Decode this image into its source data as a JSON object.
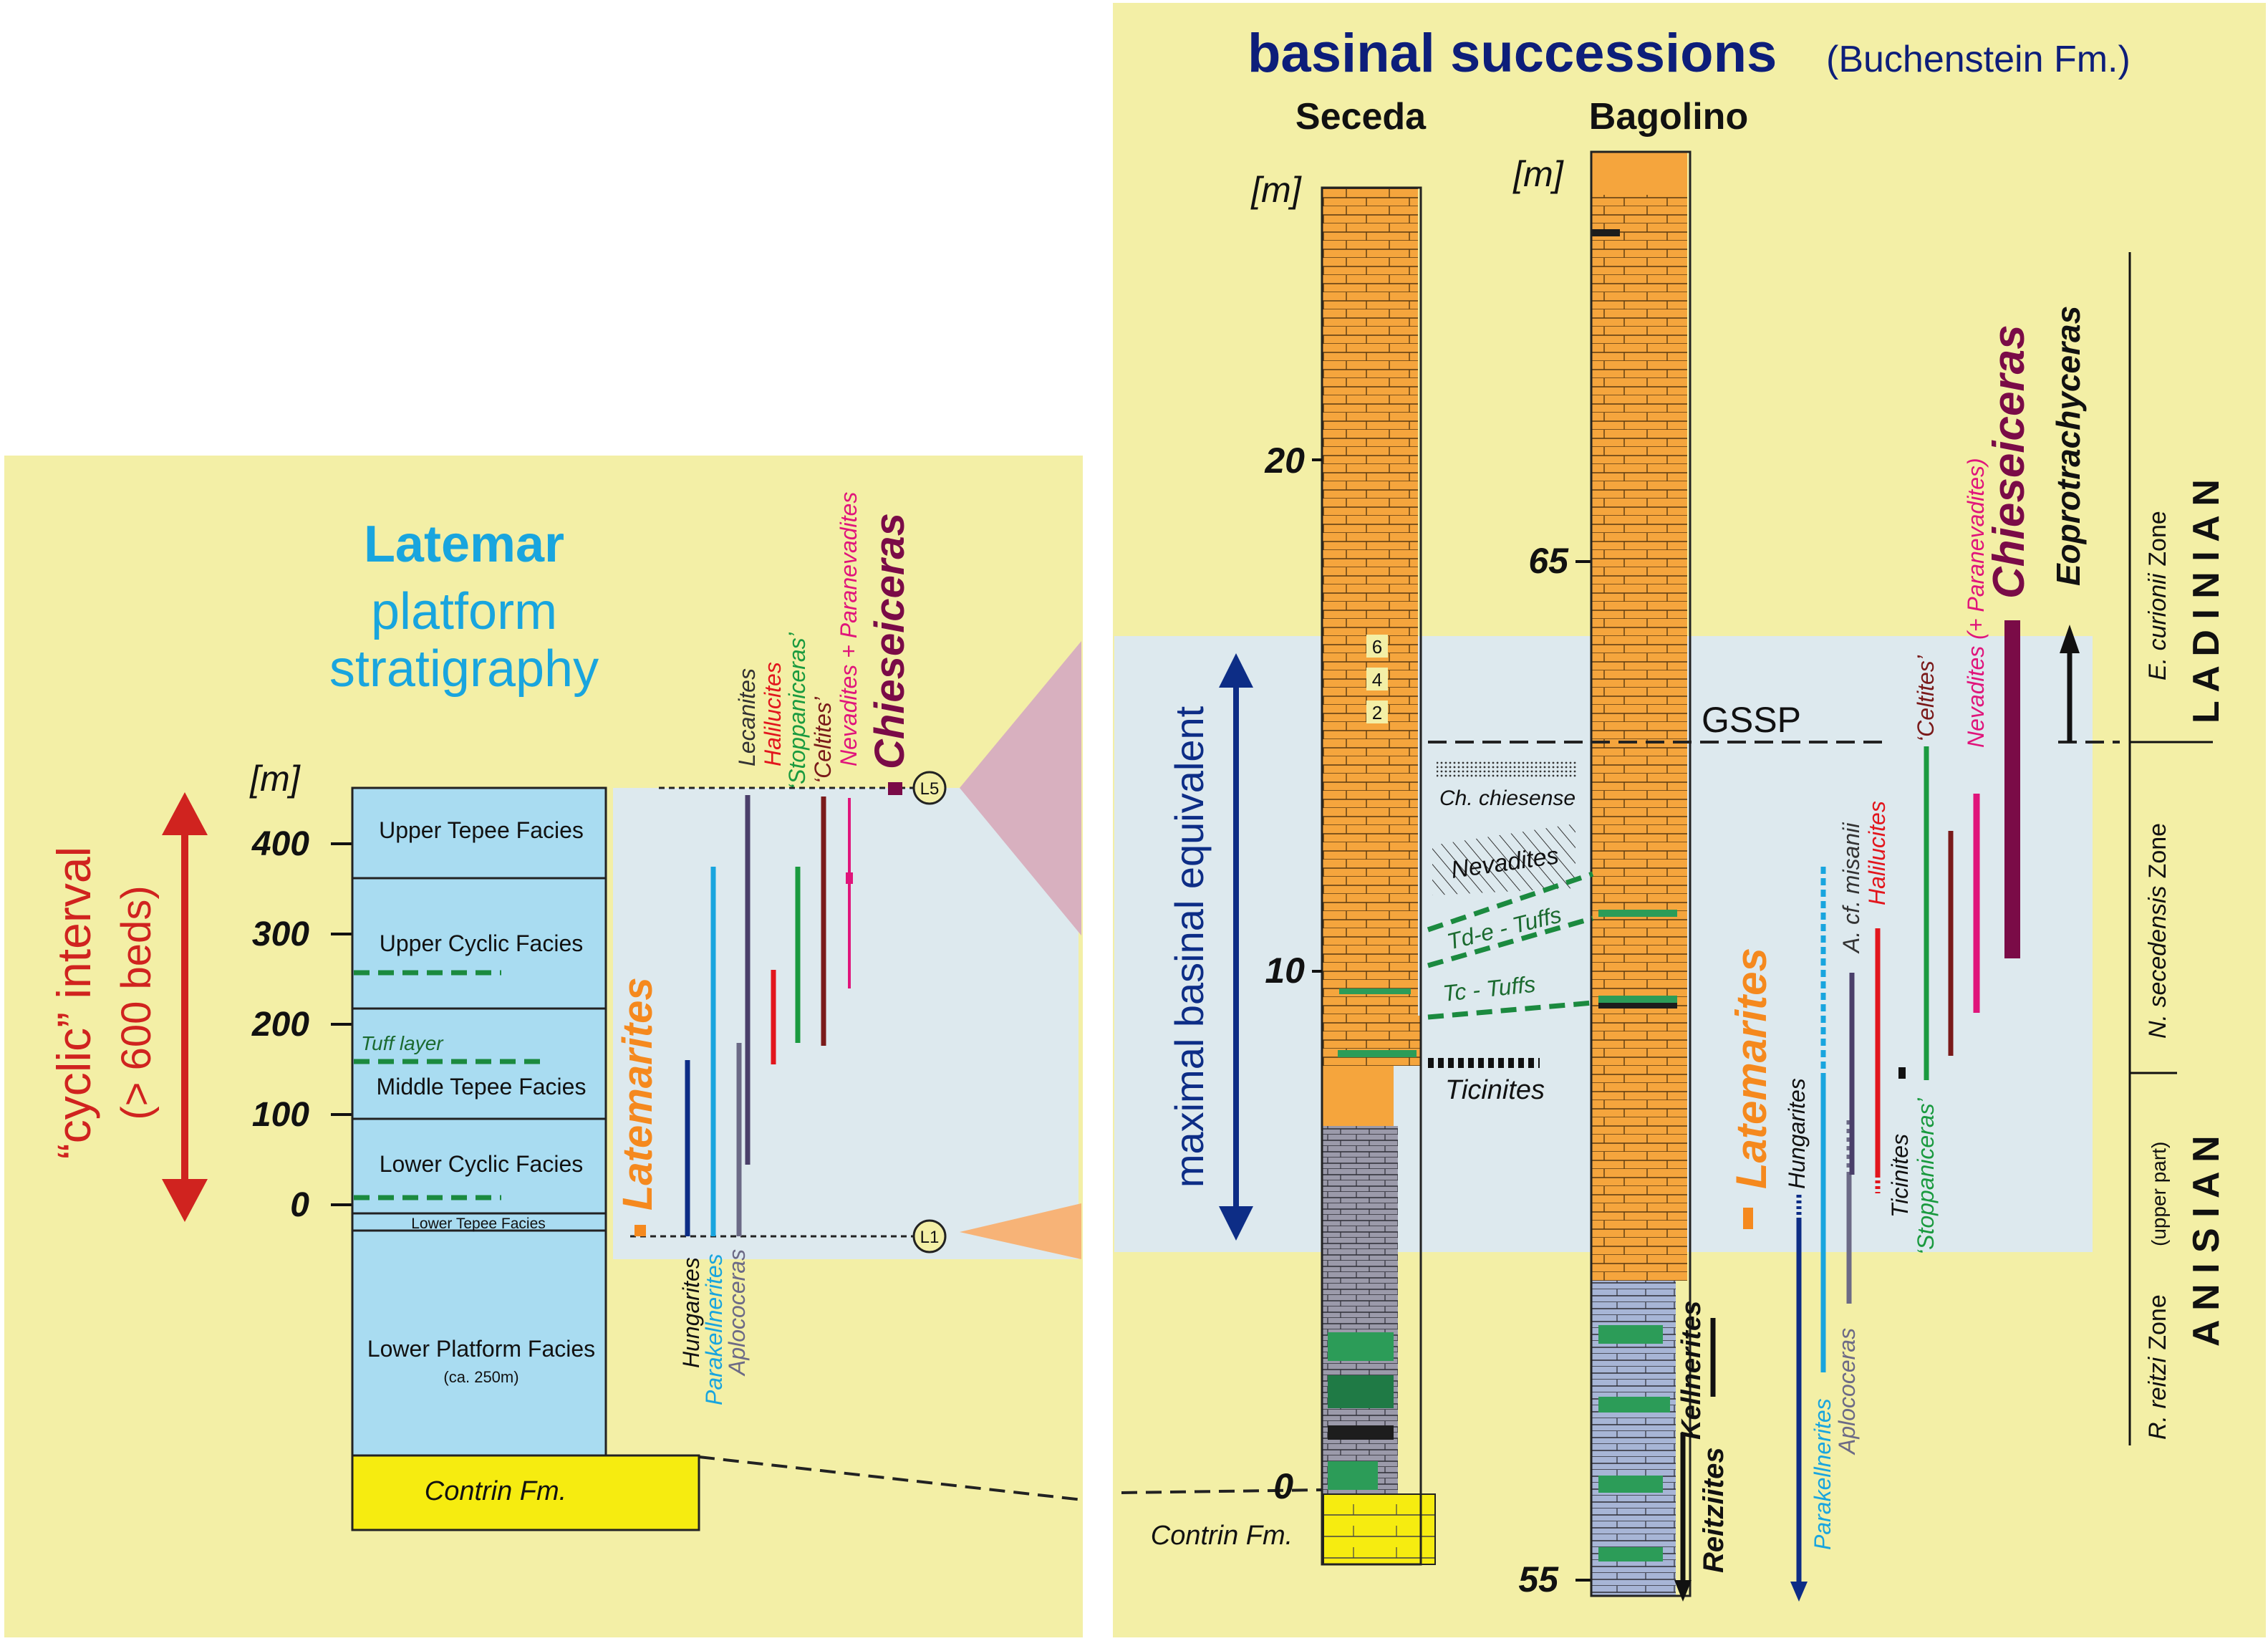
{
  "colors": {
    "panel_bg": "#f3efa6",
    "light_blue": "#dde9ee",
    "facies_blue": "#a9dcf1",
    "orange": "#f5a53d",
    "grey": "#9b9aaa",
    "green": "#2c9c58",
    "yellow": "#f6ec10",
    "red_arrow": "#d0231f",
    "navy": "#0d2d86",
    "cyan_title": "#19a5de",
    "maroon": "#7a0b47",
    "pink_triangle": "#d8b0bf",
    "orange_triangle": "#f7b377"
  },
  "left_panel": {
    "title_line1": "Latemar",
    "title_line2": "platform",
    "title_line3": "stratigraphy",
    "unit": "[m]",
    "y_ticks": [
      "400",
      "300",
      "200",
      "100",
      "0"
    ],
    "cyclic_label": "“cyclic” interval",
    "cyclic_sub": "(> 600 beds)",
    "facies": [
      "Upper Tepee Facies",
      "Upper Cyclic Facies",
      "Middle Tepee Facies",
      "Lower Cyclic Facies",
      "Lower Tepee Facies",
      "Lower Platform Facies"
    ],
    "lower_platform_sub": "(ca. 250m)",
    "tuff_label": "Tuff layer",
    "contrin": "Contrin Fm.",
    "marker_top": "L5",
    "marker_bottom": "L1",
    "latemarites": "Latemarites",
    "taxa": {
      "hungarites": "Hungarites",
      "parakellnerites": "Parakellnerites",
      "aplococeras": "Aplococeras",
      "lecanites": "Lecanites",
      "halilucites": "Halilucites",
      "stoppaniceras": "‘Stoppaniceras’",
      "celtites": "‘Celtites’",
      "nevadites": "Nevadites + Paranevadites",
      "chieseiceras": "Chieseiceras"
    }
  },
  "right_panel": {
    "title_main": "basinal successions",
    "title_sub": "(Buchenstein Fm.)",
    "seceda": "Seceda",
    "bagolino": "Bagolino",
    "unit": "[m]",
    "seceda_ticks": [
      "20",
      "10",
      "0"
    ],
    "bagolino_ticks": [
      "65",
      "55"
    ],
    "bed_numbers": [
      "6",
      "4",
      "2"
    ],
    "gssp": "GSSP",
    "maximal": "maximal basinal equivalent",
    "contrin": "Contrin Fm.",
    "ch_chiesense": "Ch. chiesense",
    "nevadites": "Nevadites",
    "tde_tuffs": "Td-e - Tuffs",
    "tc_tuffs": "Tc - Tuffs",
    "ticinites_left": "Ticinites",
    "kellnerites": "Kellnerites",
    "reitziites": "Reitziites",
    "latemarites": "Latemarites",
    "taxa": {
      "hungarites": "Hungarites",
      "parakellnerites": "Parakellnerites",
      "aplococeras": "Aplococeras",
      "a_misanii": "A. cf. misanii",
      "halilucites": "Halilucites",
      "ticinites": "Ticinites",
      "stoppaniceras": "‘Stoppaniceras’",
      "celtites": "‘Celtites’",
      "nevadites": "Nevadites (+ Paranevadites)",
      "chieseiceras": "Chieseiceras",
      "eoprotrachyceras": "Eoprotrachyceras"
    },
    "zones": {
      "curionii": "E. curionii",
      "secedensis": "N. secedensis",
      "reitzi": "R. reitzi",
      "zone_word": "Zone",
      "upper_part": "(upper part)"
    },
    "stages": {
      "ladinian": "L A D I N I A N",
      "anisian": "A N I S I A N"
    }
  }
}
